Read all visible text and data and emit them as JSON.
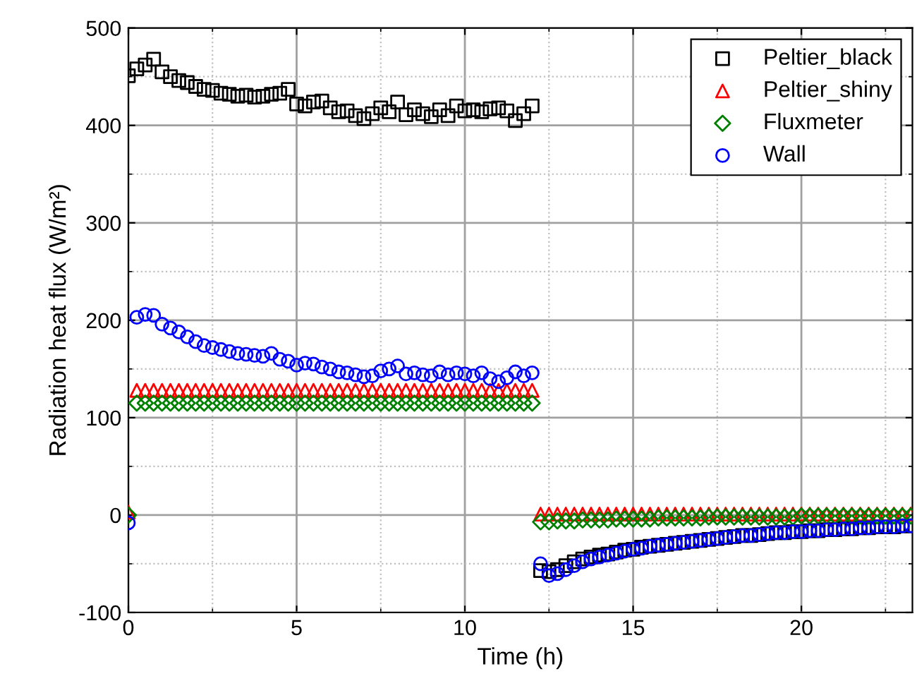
{
  "chart_data": {
    "type": "scatter",
    "xlabel": "Time (h)",
    "ylabel": "Radiation heat flux (W/m²)",
    "x": [
      0,
      0.25,
      0.5,
      0.75,
      1,
      1.25,
      1.5,
      1.75,
      2,
      2.25,
      2.5,
      2.75,
      3,
      3.25,
      3.5,
      3.75,
      4,
      4.25,
      4.5,
      4.75,
      5,
      5.25,
      5.5,
      5.75,
      6,
      6.25,
      6.5,
      6.75,
      7,
      7.25,
      7.5,
      7.75,
      8,
      8.25,
      8.5,
      8.75,
      9,
      9.25,
      9.5,
      9.75,
      10,
      10.25,
      10.5,
      10.75,
      11,
      11.25,
      11.5,
      11.75,
      12,
      12.25,
      12.5,
      12.75,
      13,
      13.25,
      13.5,
      13.75,
      14,
      14.25,
      14.5,
      14.75,
      15,
      15.25,
      15.5,
      15.75,
      16,
      16.25,
      16.5,
      16.75,
      17,
      17.25,
      17.5,
      17.75,
      18,
      18.25,
      18.5,
      18.75,
      19,
      19.25,
      19.5,
      19.75,
      20,
      20.25,
      20.5,
      20.75,
      21,
      21.25,
      21.5,
      21.75,
      22,
      22.25,
      22.5,
      22.75,
      23,
      23.25
    ],
    "series": [
      {
        "name": "Peltier_black",
        "color": "#000000",
        "marker": "square",
        "values": [
          451,
          458,
          462,
          468,
          455,
          450,
          446,
          444,
          440,
          437,
          436,
          433,
          432,
          430,
          431,
          429,
          430,
          432,
          433,
          437,
          422,
          420,
          424,
          425,
          418,
          414,
          415,
          410,
          407,
          412,
          418,
          414,
          424,
          411,
          416,
          412,
          409,
          416,
          410,
          420,
          415,
          416,
          414,
          417,
          418,
          415,
          405,
          412,
          420,
          -57,
          -58,
          -56,
          -52,
          -48,
          -45,
          -43,
          -41,
          -40,
          -38,
          -36,
          -35,
          -33,
          -32,
          -31,
          -30,
          -29,
          -28,
          -27,
          -26,
          -25,
          -24,
          -23,
          -22,
          -21,
          -21,
          -20,
          -19,
          -18,
          -18,
          -17,
          -17,
          -16,
          -16,
          -15,
          -15,
          -14,
          -14,
          -13,
          -13,
          -12,
          -12,
          -12,
          -11,
          -11
        ]
      },
      {
        "name": "Peltier_shiny",
        "color": "#ff0000",
        "marker": "triangle",
        "values": [
          3,
          128,
          128,
          128,
          128,
          128,
          128,
          128,
          128,
          128,
          128,
          128,
          128,
          128,
          128,
          128,
          128,
          128,
          128,
          128,
          128,
          128,
          128,
          128,
          128,
          128,
          128,
          128,
          128,
          128,
          128,
          128,
          128,
          128,
          128,
          128,
          128,
          128,
          128,
          128,
          128,
          128,
          128,
          128,
          128,
          128,
          128,
          128,
          128,
          1,
          1,
          1,
          1,
          1,
          1,
          1,
          1,
          1,
          1,
          1,
          1,
          1,
          1,
          1,
          1,
          1,
          1,
          1,
          1,
          1,
          1,
          1,
          1,
          1,
          1,
          1,
          1,
          1,
          1,
          1,
          1,
          1,
          1,
          1,
          1,
          1,
          1,
          1,
          1,
          1,
          1,
          1,
          1,
          1
        ]
      },
      {
        "name": "Fluxmeter",
        "color": "#008000",
        "marker": "diamond",
        "values": [
          0,
          115,
          115,
          115,
          115,
          115,
          115,
          115,
          115,
          115,
          115,
          115,
          115,
          115,
          115,
          115,
          115,
          115,
          115,
          115,
          115,
          115,
          115,
          115,
          115,
          115,
          115,
          115,
          115,
          115,
          115,
          115,
          115,
          115,
          115,
          115,
          115,
          115,
          115,
          115,
          115,
          115,
          115,
          115,
          115,
          115,
          115,
          115,
          115,
          -7,
          -7,
          -6,
          -6,
          -6,
          -5,
          -5,
          -5,
          -5,
          -4,
          -4,
          -4,
          -4,
          -4,
          -3,
          -3,
          -3,
          -3,
          -3,
          -3,
          -2,
          -2,
          -2,
          -2,
          -2,
          -2,
          -2,
          -2,
          -2,
          -2,
          -2,
          -1,
          -1,
          -1,
          -1,
          -1,
          -1,
          -1,
          -1,
          -1,
          -1,
          -1,
          -1,
          -1,
          -1
        ]
      },
      {
        "name": "Wall",
        "color": "#0000ff",
        "marker": "circle",
        "values": [
          -8,
          203,
          206,
          205,
          196,
          192,
          188,
          183,
          178,
          174,
          172,
          170,
          168,
          166,
          165,
          164,
          163,
          166,
          160,
          158,
          154,
          156,
          155,
          152,
          150,
          147,
          146,
          144,
          142,
          143,
          148,
          150,
          153,
          145,
          146,
          144,
          143,
          147,
          144,
          146,
          145,
          143,
          146,
          140,
          137,
          141,
          147,
          143,
          146,
          -50,
          -62,
          -60,
          -56,
          -52,
          -48,
          -45,
          -43,
          -41,
          -39,
          -37,
          -35,
          -34,
          -32,
          -31,
          -30,
          -29,
          -28,
          -27,
          -26,
          -25,
          -24,
          -23,
          -22,
          -21,
          -21,
          -20,
          -19,
          -18,
          -18,
          -17,
          -17,
          -16,
          -16,
          -15,
          -15,
          -14,
          -14,
          -13,
          -13,
          -12,
          -12,
          -12,
          -11,
          -11
        ]
      }
    ],
    "xlim": [
      0,
      23.3
    ],
    "ylim": [
      -100,
      500
    ],
    "xticks": [
      0,
      5,
      10,
      15,
      20
    ],
    "yticks": [
      -100,
      0,
      100,
      200,
      300,
      400,
      500
    ],
    "grid": true,
    "legend": "top right"
  }
}
